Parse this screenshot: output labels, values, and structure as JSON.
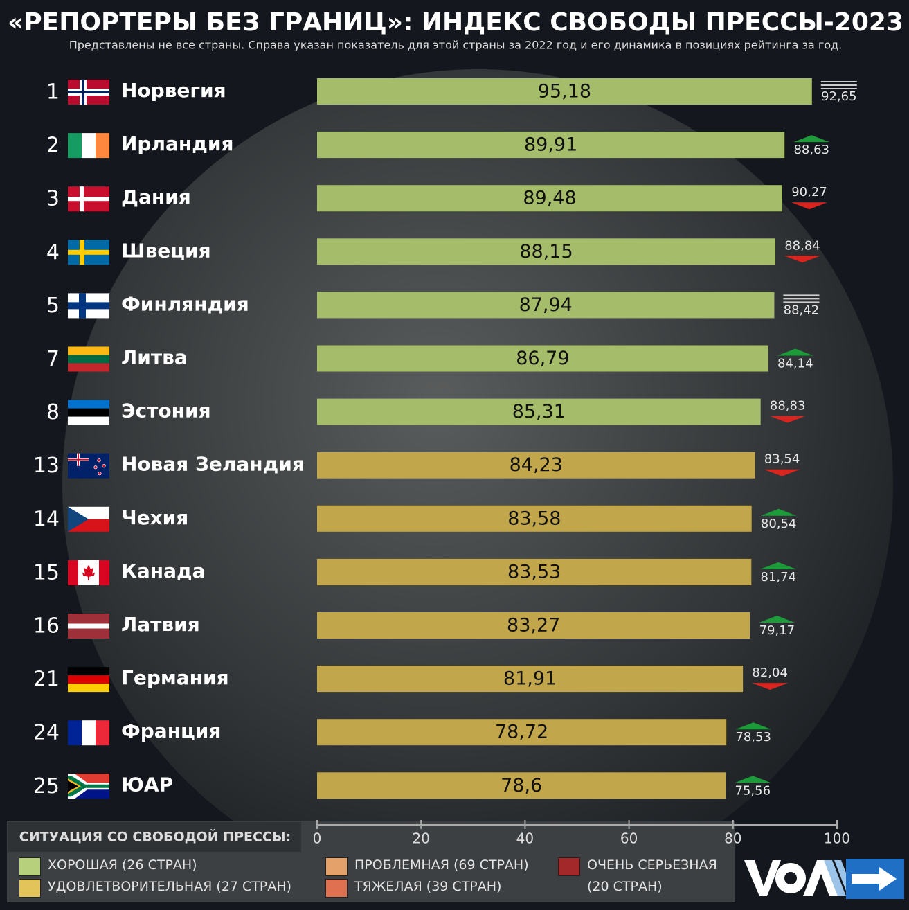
{
  "chart_data": {
    "type": "bar",
    "title": "«РЕПОРТЕРЫ БЕЗ ГРАНИЦ»: ИНДЕКС СВОБОДЫ ПРЕССЫ-2023",
    "subtitle": "Представлены не все страны. Справа указан показатель для этой страны за 2022 год и его динамика в позициях рейтинга за год.",
    "categories": [
      "Норвегия",
      "Ирландия",
      "Дания",
      "Швеция",
      "Финляндия",
      "Литва",
      "Эстония",
      "Новая Зеландия",
      "Чехия",
      "Канада",
      "Латвия",
      "Германия",
      "Франция",
      "ЮАР"
    ],
    "ranks": [
      1,
      2,
      3,
      4,
      5,
      7,
      8,
      13,
      14,
      15,
      16,
      21,
      24,
      25
    ],
    "values": [
      95.18,
      89.91,
      89.48,
      88.15,
      87.94,
      86.79,
      85.31,
      84.23,
      83.58,
      83.53,
      83.27,
      81.91,
      78.72,
      78.6
    ],
    "value_labels": [
      "95,18",
      "89,91",
      "89,48",
      "88,15",
      "87,94",
      "86,79",
      "85,31",
      "84,23",
      "83,58",
      "83,53",
      "83,27",
      "81,91",
      "78,72",
      "78,6"
    ],
    "colors": [
      "#a5bd6b",
      "#a5bd6b",
      "#a5bd6b",
      "#a5bd6b",
      "#a5bd6b",
      "#a5bd6b",
      "#a5bd6b",
      "#c2a64c",
      "#c2a64c",
      "#c2a64c",
      "#c2a64c",
      "#c2a64c",
      "#c2a64c",
      "#c2a64c"
    ],
    "values_2022": [
      92.65,
      88.63,
      90.27,
      88.84,
      88.42,
      84.14,
      88.83,
      83.54,
      80.54,
      81.74,
      79.17,
      82.04,
      78.53,
      75.56
    ],
    "values_2022_labels": [
      "92,65",
      "88,63",
      "90,27",
      "88,84",
      "88,42",
      "84,14",
      "88,83",
      "83,54",
      "80,54",
      "81,74",
      "79,17",
      "82,04",
      "78,53",
      "75,56"
    ],
    "trend": [
      "same",
      "up",
      "down",
      "down",
      "same",
      "up",
      "down",
      "down",
      "up",
      "up",
      "up",
      "down",
      "up",
      "up"
    ],
    "xlim": [
      0,
      100
    ],
    "xticks": [
      0,
      20,
      40,
      60,
      80,
      100
    ],
    "legend_title": "СИТУАЦИЯ СО СВОБОДОЙ ПРЕССЫ:",
    "legend": [
      {
        "name": "ХОРОШАЯ (26 СТРАН)",
        "color": "#b6d07b"
      },
      {
        "name": "УДОВЛЕТВОРИТЕЛЬНАЯ (27 СТРАН)",
        "color": "#e3c45b"
      },
      {
        "name": "ПРОБЛЕМНАЯ (69 СТРАН)",
        "color": "#e4a26a"
      },
      {
        "name": "ТЯЖЕЛАЯ (39 СТРАН)",
        "color": "#e07150"
      },
      {
        "name": "ОЧЕНЬ СЕРЬЕЗНАЯ (20 СТРАН)",
        "color": "#a3282a"
      }
    ]
  }
}
